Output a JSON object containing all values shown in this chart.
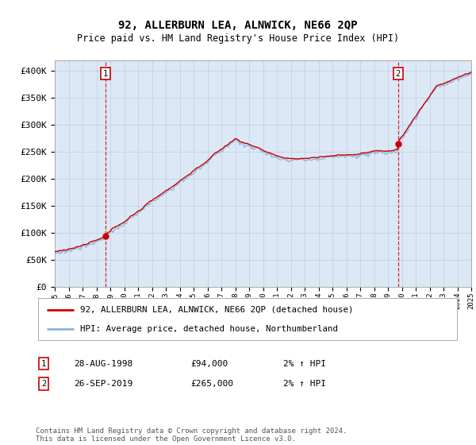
{
  "title": "92, ALLERBURN LEA, ALNWICK, NE66 2QP",
  "subtitle": "Price paid vs. HM Land Registry's House Price Index (HPI)",
  "ylabel_ticks": [
    "£0",
    "£50K",
    "£100K",
    "£150K",
    "£200K",
    "£250K",
    "£300K",
    "£350K",
    "£400K"
  ],
  "ytick_values": [
    0,
    50000,
    100000,
    150000,
    200000,
    250000,
    300000,
    350000,
    400000
  ],
  "ylim": [
    0,
    420000
  ],
  "hpi_color": "#8ab4d8",
  "price_color": "#cc0000",
  "sale1_year": 1998.65,
  "sale1_value": 94000,
  "sale2_year": 2019.73,
  "sale2_value": 265000,
  "legend_line1": "92, ALLERBURN LEA, ALNWICK, NE66 2QP (detached house)",
  "legend_line2": "HPI: Average price, detached house, Northumberland",
  "table_row1": [
    "1",
    "28-AUG-1998",
    "£94,000",
    "2% ↑ HPI"
  ],
  "table_row2": [
    "2",
    "26-SEP-2019",
    "£265,000",
    "2% ↑ HPI"
  ],
  "footnote": "Contains HM Land Registry data © Crown copyright and database right 2024.\nThis data is licensed under the Open Government Licence v3.0.",
  "background_color": "#ffffff",
  "plot_bg_color": "#dce8f5",
  "grid_color": "#b0c4d8"
}
